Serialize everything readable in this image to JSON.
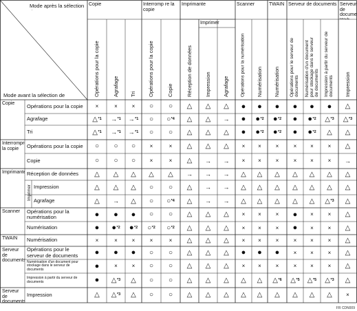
{
  "header": {
    "corner_top": "Mode après la sélection de",
    "corner_bottom": "Mode avant la sélection de",
    "groups": [
      "Copie",
      "Interromp re la copie",
      "Imprimante",
      "Scanner",
      "TWAIN",
      "Serveur de documents",
      "Serveur de documents Web"
    ],
    "subgroup_imprimer": "Imprimer",
    "columns": [
      "Opérations pour la copie",
      "Agrafage",
      "Tri",
      "Opérations pour la copie",
      "Copie",
      "Réception de données",
      "Impression",
      "Agrafage",
      "Opérations pour la numérisation",
      "Numérisation",
      "Numérisation",
      "Opérations pour le serveur de documents",
      "Numérisation d'un document pour stockage dans le serveur de documents",
      "Impression à partir du serveur de documents",
      "Impression"
    ]
  },
  "row_groups": [
    {
      "name": "Copie",
      "rows": [
        "Opérations pour la copie",
        "Agrafage",
        "Tri"
      ]
    },
    {
      "name": "Interrompre la copie",
      "rows": [
        "Opérations pour la copie",
        "Copie"
      ]
    },
    {
      "name": "Imprimante",
      "rows": [
        "Réception de données",
        "Impression",
        "Agrafage"
      ],
      "sub": "Imprimer"
    },
    {
      "name": "Scanner",
      "rows": [
        "Opérations pour la numérisation",
        "Numérisation"
      ]
    },
    {
      "name": "TWAIN",
      "rows": [
        "Numérisation"
      ]
    },
    {
      "name": "Serveur de documents",
      "rows": [
        "Opérations pour le serveur de documents",
        "Numérisation d'un document pour stockage dans le serveur de documents",
        "Impression à partir du serveur de documents"
      ]
    },
    {
      "name": "Serveur de documents Web",
      "rows": [
        "Impression"
      ]
    }
  ],
  "matrix": [
    [
      "x",
      "x",
      "x",
      "O",
      "O",
      "T",
      "T",
      "T",
      "D",
      "D",
      "D",
      "D",
      "D",
      "D",
      "T"
    ],
    [
      "T*1",
      "->*1",
      "->*1",
      "O",
      "O*4",
      "T",
      "T",
      "->",
      "D",
      "D*2",
      "D*2",
      "D",
      "D*2",
      "T*3",
      "T*3"
    ],
    [
      "T*1",
      "->*1",
      "->*1",
      "O",
      "O",
      "T",
      "T",
      "T",
      "D",
      "D*2",
      "D*2",
      "D",
      "D*2",
      "T",
      "T"
    ],
    [
      "O",
      "O",
      "O",
      "x",
      "x",
      "T",
      "T",
      "T",
      "x",
      "x",
      "x",
      "x",
      "x",
      "x",
      "T"
    ],
    [
      "O",
      "O",
      "O",
      "x",
      "x",
      "T",
      "->",
      "->",
      "x",
      "x",
      "x",
      "x",
      "x",
      "x",
      "->"
    ],
    [
      "T",
      "T",
      "T",
      "T",
      "T",
      "->",
      "->",
      "->",
      "T",
      "T",
      "T",
      "T",
      "T",
      "T",
      "T"
    ],
    [
      "T",
      "T",
      "T",
      "O",
      "O",
      "T",
      "->",
      "->",
      "T",
      "T",
      "T",
      "T",
      "T",
      "T",
      "T"
    ],
    [
      "T",
      "->",
      "T",
      "O",
      "O*4",
      "T",
      "->",
      "->",
      "T",
      "T",
      "T",
      "T",
      "T",
      "T*3",
      "T"
    ],
    [
      "D",
      "D",
      "D",
      "O",
      "O",
      "T",
      "T",
      "T",
      "x",
      "x",
      "x",
      "D",
      "x",
      "x",
      "T"
    ],
    [
      "D",
      "D*2",
      "D*2",
      "O*2",
      "O*2",
      "T",
      "T",
      "T",
      "x",
      "x",
      "x",
      "D",
      "x",
      "x",
      "T"
    ],
    [
      "x",
      "x",
      "x",
      "x",
      "x",
      "T",
      "T",
      "T",
      "x",
      "x",
      "x",
      "x",
      "x",
      "x",
      "T"
    ],
    [
      "D",
      "D",
      "D",
      "O",
      "O",
      "T",
      "T",
      "T",
      "D",
      "D",
      "D",
      "x",
      "x",
      "x",
      "T"
    ],
    [
      "D",
      "x",
      "x",
      "O",
      "O",
      "T",
      "T",
      "T",
      "x",
      "x",
      "x",
      "x",
      "x",
      "x",
      "T"
    ],
    [
      "D",
      "T*3",
      "T",
      "O",
      "O",
      "T",
      "T",
      "T",
      "T",
      "T",
      "T*6",
      "T*5",
      "T*5",
      "T*3",
      "T"
    ],
    [
      "T",
      "T*3",
      "T",
      "O",
      "O",
      "T",
      "T",
      "T",
      "T",
      "T",
      "T",
      "T",
      "T",
      "T",
      "x"
    ]
  ],
  "symbols": {
    "O": "○",
    "D": "●",
    "T": "△",
    "x": "×",
    "->": "→"
  },
  "footer_code": "FR CDN009"
}
